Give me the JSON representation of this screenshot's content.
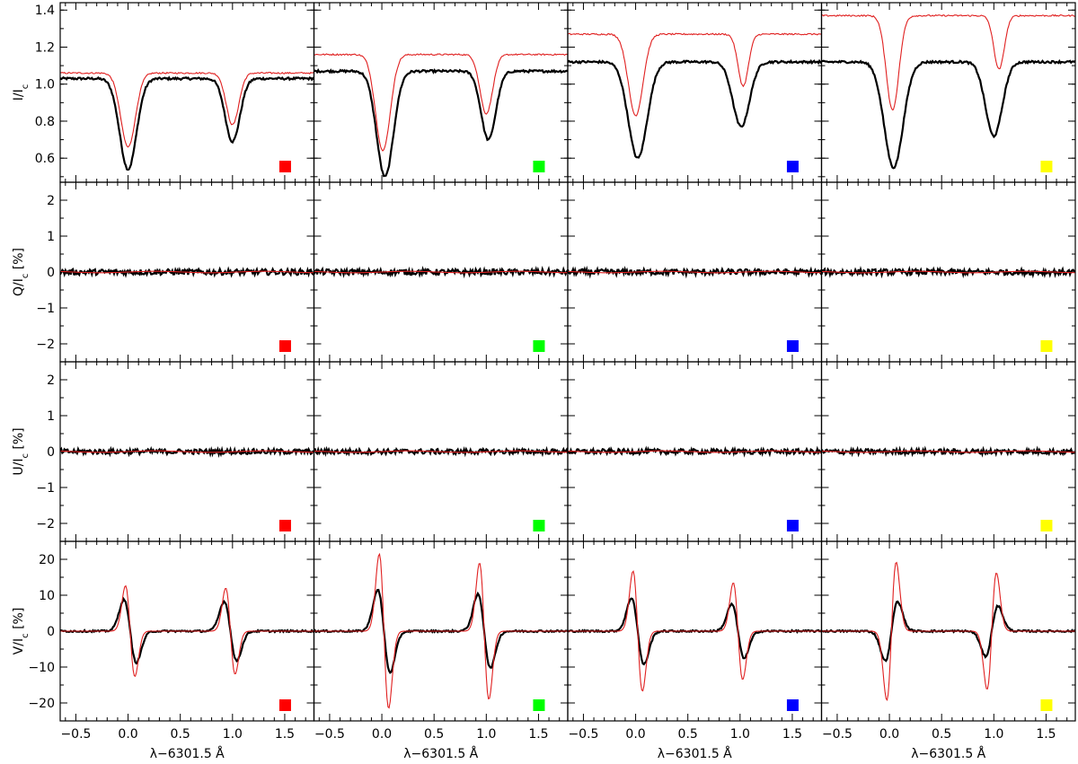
{
  "colors": {
    "observed": "#000000",
    "fit": "#e02020",
    "markers": [
      "#ff0000",
      "#00ff00",
      "#0000ff",
      "#ffff00"
    ]
  },
  "chart_data": {
    "type": "line",
    "layout": "grid-4-rows-x-4-columns",
    "xlabel": "λ−6301.5 Å",
    "xlim": [
      -0.65,
      1.78
    ],
    "xticks": [
      -0.5,
      0.0,
      0.5,
      1.0,
      1.5
    ],
    "xtick_labels": [
      "−0.5",
      "0.0",
      "0.5",
      "1.0",
      "1.5"
    ],
    "series_legend": [
      {
        "style": "thick black line",
        "color": "#000000"
      },
      {
        "style": "thin red line",
        "color": "#e02020"
      }
    ],
    "column_markers": [
      "red-square",
      "green-square",
      "blue-square",
      "yellow-square"
    ],
    "rows": [
      {
        "key": "I",
        "ylabel": "I/I",
        "ylabel_sub": "c",
        "ylabel_suffix": "",
        "ylim": [
          0.47,
          1.44
        ],
        "yticks": [
          0.6,
          0.8,
          1.0,
          1.2,
          1.4
        ],
        "ytick_labels": [
          "0.6",
          "0.8",
          "1.0",
          "1.2",
          "1.4"
        ],
        "panels": [
          {
            "black": {
              "cont": 1.03,
              "d1": 0.54,
              "c1": 0.0,
              "w1": 0.08,
              "d2": 0.69,
              "c2": 1.0,
              "w2": 0.07
            },
            "red": {
              "cont": 1.06,
              "d1": 0.66,
              "c1": 0.0,
              "w1": 0.07,
              "d2": 0.78,
              "c2": 1.0,
              "w2": 0.06
            }
          },
          {
            "black": {
              "cont": 1.07,
              "d1": 0.5,
              "c1": 0.03,
              "w1": 0.08,
              "d2": 0.7,
              "c2": 1.02,
              "w2": 0.07
            },
            "red": {
              "cont": 1.16,
              "d1": 0.64,
              "c1": 0.01,
              "w1": 0.07,
              "d2": 0.84,
              "c2": 1.0,
              "w2": 0.06
            }
          },
          {
            "black": {
              "cont": 1.12,
              "d1": 0.6,
              "c1": 0.02,
              "w1": 0.09,
              "d2": 0.77,
              "c2": 1.01,
              "w2": 0.08
            },
            "red": {
              "cont": 1.27,
              "d1": 0.83,
              "c1": 0.0,
              "w1": 0.07,
              "d2": 0.99,
              "c2": 1.03,
              "w2": 0.05
            }
          },
          {
            "black": {
              "cont": 1.12,
              "d1": 0.55,
              "c1": 0.04,
              "w1": 0.09,
              "d2": 0.72,
              "c2": 1.0,
              "w2": 0.08
            },
            "red": {
              "cont": 1.37,
              "d1": 0.86,
              "c1": 0.03,
              "w1": 0.06,
              "d2": 1.08,
              "c2": 1.05,
              "w2": 0.05
            }
          }
        ]
      },
      {
        "key": "Q",
        "ylabel": "Q/I",
        "ylabel_sub": "c",
        "ylabel_suffix": " [%]",
        "ylim": [
          -2.5,
          2.5
        ],
        "yticks": [
          -2,
          -1,
          0,
          1,
          2
        ],
        "ytick_labels": [
          "−2",
          "−1",
          "0",
          "1",
          "2"
        ],
        "panels": [
          {
            "black_noise": 0.08,
            "red_flat": 0.0
          },
          {
            "black_noise": 0.08,
            "red_flat": 0.0
          },
          {
            "black_noise": 0.08,
            "red_flat": 0.0
          },
          {
            "black_noise": 0.08,
            "red_flat": 0.0
          }
        ]
      },
      {
        "key": "U",
        "ylabel": "U/I",
        "ylabel_sub": "c",
        "ylabel_suffix": " [%]",
        "ylim": [
          -2.5,
          2.5
        ],
        "yticks": [
          -2,
          -1,
          0,
          1,
          2
        ],
        "ytick_labels": [
          "−2",
          "−1",
          "0",
          "1",
          "2"
        ],
        "panels": [
          {
            "black_noise": 0.07,
            "red_flat": 0.0
          },
          {
            "black_noise": 0.07,
            "red_flat": 0.0
          },
          {
            "black_noise": 0.07,
            "red_flat": 0.0
          },
          {
            "black_noise": 0.07,
            "red_flat": 0.0
          }
        ]
      },
      {
        "key": "V",
        "ylabel": "V/I",
        "ylabel_sub": "c",
        "ylabel_suffix": " [%]",
        "ylim": [
          -25,
          25
        ],
        "yticks": [
          -20,
          -10,
          0,
          10,
          20
        ],
        "ytick_labels": [
          "−20",
          "−10",
          "0",
          "10",
          "20"
        ],
        "panels": [
          {
            "black": {
              "n1": -10.5,
              "p1": 7.0,
              "n2": -9.5,
              "p2": 7.0
            },
            "red": {
              "n1": -15.5,
              "p1": 9.8,
              "n2": -15.0,
              "p2": 9.0
            }
          },
          {
            "black": {
              "n1": -12.0,
              "p1": 11.0,
              "n2": -10.5,
              "p2": 10.0
            },
            "red": {
              "n1": -22.0,
              "p1": 21.0,
              "n2": -19.0,
              "p2": 19.0
            }
          },
          {
            "black": {
              "n1": -11.0,
              "p1": 7.5,
              "n2": -8.5,
              "p2": 6.5
            },
            "red": {
              "n1": -18.5,
              "p1": 15.0,
              "n2": -15.5,
              "p2": 11.5
            }
          },
          {
            "black": {
              "p1": 9.5,
              "n1": -7.0,
              "p2": 7.5,
              "n2": -6.5
            },
            "red": {
              "p1": 22.0,
              "n1": -16.5,
              "p2": 17.0,
              "n2": -15.5
            }
          }
        ]
      }
    ]
  }
}
